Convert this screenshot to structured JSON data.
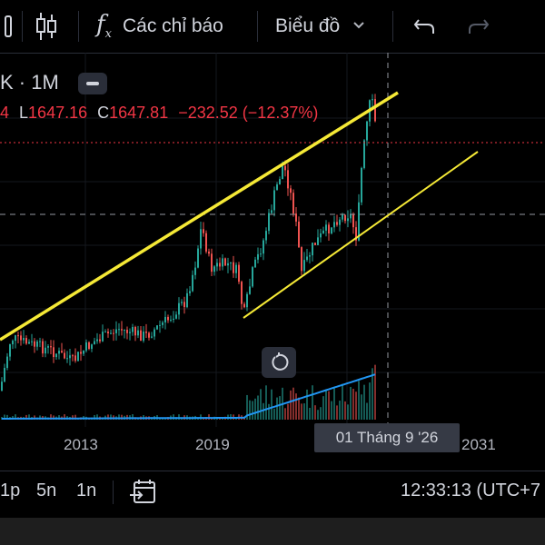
{
  "toolbar": {
    "indicators_label": "Các chỉ báo",
    "chart_type_label": "Biểu đồ"
  },
  "legend": {
    "symbol_interval": "K · 1M",
    "low_prefix": "4",
    "low_label": "L",
    "low_value": "1647.16",
    "close_label": "C",
    "close_value": "1647.81",
    "change": "−232.52 (−12.37%)"
  },
  "xaxis": {
    "ticks": [
      "2013",
      "2019",
      "2031"
    ]
  },
  "crosshair": {
    "date_label": "01 Tháng 9 '26"
  },
  "bottombar": {
    "ranges": [
      "1p",
      "5n",
      "1n"
    ],
    "clock": "12:33:13 (UTC+7"
  },
  "colors": {
    "up": "#26a69a",
    "down": "#ef5350",
    "trendline": "#f5e936",
    "volume_ma": "#2196f3",
    "price_line": "#f23645"
  },
  "chart_data": {
    "type": "candlestick",
    "title": "",
    "xlabel": "",
    "ylabel": "",
    "x_ticks": [
      "2013",
      "2019",
      "2031"
    ],
    "last_close": 1647.81,
    "last_low": 1647.16,
    "change": -232.52,
    "change_pct": -12.37
  }
}
